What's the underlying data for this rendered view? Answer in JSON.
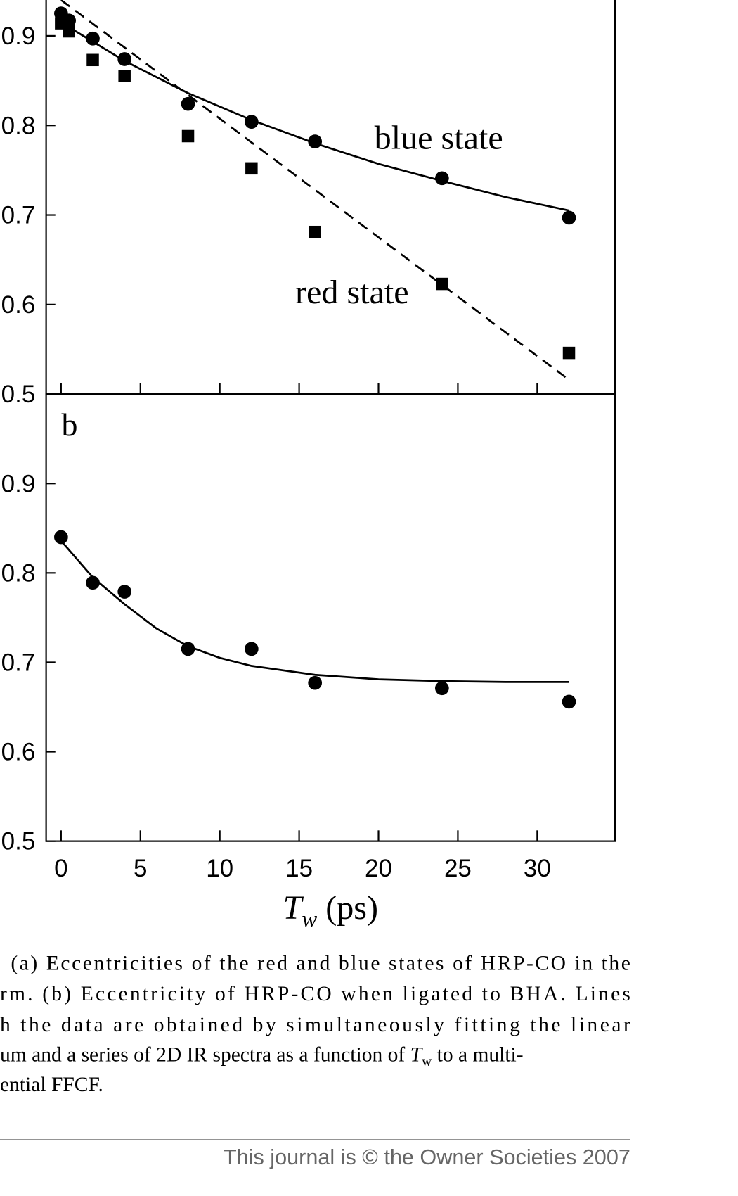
{
  "chart_data": [
    {
      "type": "scatter",
      "panel_label": null,
      "annotations": [
        "blue state",
        "red state"
      ],
      "xlim": [
        -0.94,
        34.9
      ],
      "xticks": [
        0,
        5,
        10,
        15,
        20,
        25,
        30
      ],
      "ylim": [
        0.5,
        1.0
      ],
      "yticks": [
        0.5,
        0.6,
        0.7,
        0.8,
        0.9
      ],
      "series": [
        {
          "name": "blue state",
          "marker": "circle",
          "color": "#000000",
          "x": [
            0,
            0.5,
            2,
            4,
            8,
            12,
            16,
            24,
            32
          ],
          "values": [
            0.925,
            0.917,
            0.897,
            0.874,
            0.824,
            0.804,
            0.782,
            0.741,
            0.697
          ]
        },
        {
          "name": "red state",
          "marker": "square",
          "color": "#000000",
          "x": [
            0,
            0.5,
            2,
            4,
            8,
            12,
            16,
            24,
            32
          ],
          "values": [
            0.914,
            0.905,
            0.873,
            0.855,
            0.788,
            0.752,
            0.681,
            0.623,
            0.546
          ]
        },
        {
          "name": "blue state",
          "marker": "solid",
          "color": "#000000",
          "x": [
            0,
            4,
            8,
            12,
            16,
            20,
            24,
            28,
            32
          ],
          "values": [
            0.915,
            0.872,
            0.836,
            0.806,
            0.78,
            0.757,
            0.738,
            0.72,
            0.705
          ]
        },
        {
          "name": "red state",
          "marker": "dashed",
          "color": "#000000",
          "x": [
            0,
            32
          ],
          "values": [
            0.94,
            0.516
          ]
        }
      ]
    },
    {
      "type": "scatter",
      "panel_label": "b",
      "xlabel": {
        "main": "T",
        "sub": "w",
        "rest": "(ps)"
      },
      "xlim": [
        -0.94,
        34.9
      ],
      "xticks": [
        0,
        5,
        10,
        15,
        20,
        25,
        30
      ],
      "ylim": [
        0.5,
        1.0
      ],
      "yticks": [
        0.5,
        0.6,
        0.7,
        0.8,
        0.9
      ],
      "series": [
        {
          "name": "BHA",
          "marker": "circle",
          "color": "#000000",
          "x": [
            0,
            2,
            4,
            8,
            12,
            16,
            24,
            32
          ],
          "values": [
            0.84,
            0.789,
            0.779,
            0.715,
            0.715,
            0.677,
            0.671,
            0.656
          ]
        },
        {
          "name": "BHA",
          "marker": "solid",
          "color": "#000000",
          "x": [
            0,
            2,
            4,
            6,
            8,
            10,
            12,
            16,
            20,
            24,
            28,
            32
          ],
          "values": [
            0.836,
            0.795,
            0.765,
            0.738,
            0.718,
            0.705,
            0.696,
            0.686,
            0.681,
            0.679,
            0.678,
            0.678
          ]
        }
      ]
    }
  ],
  "caption": {
    "lines": [
      "(a) Eccentricities of the red and blue states of HRP-CO in the",
      "rm. (b) Eccentricity of HRP-CO when ligated to BHA. Lines",
      "h the data are obtained by simultaneously fitting the linear",
      "um and a series of 2D IR spectra as a function of",
      "ential FFCF."
    ],
    "tw_main": "T",
    "tw_sub": "w",
    "tw_rest": "to a multi-"
  },
  "footer": "This journal is © the Owner Societies 2007"
}
